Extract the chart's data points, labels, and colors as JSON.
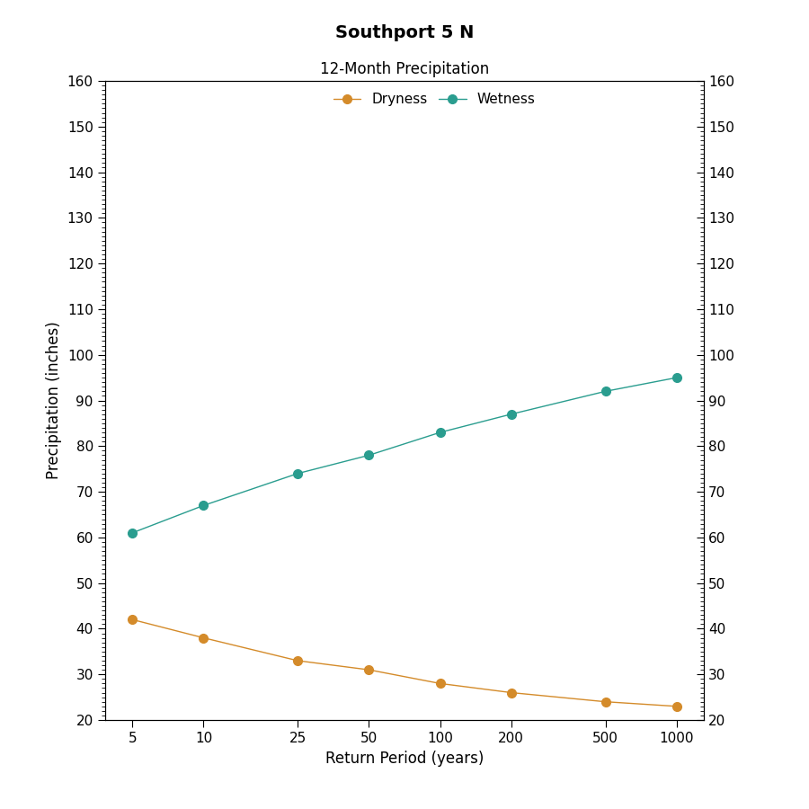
{
  "title": "Southport 5 N",
  "subtitle": "12-Month Precipitation",
  "xlabel": "Return Period (years)",
  "ylabel": "Precipitation (inches)",
  "x_values": [
    5,
    10,
    25,
    50,
    100,
    200,
    500,
    1000
  ],
  "wetness_values": [
    61,
    67,
    74,
    78,
    83,
    87,
    92,
    95
  ],
  "dryness_values": [
    42,
    38,
    33,
    31,
    28,
    26,
    24,
    23
  ],
  "wetness_color": "#2a9d8f",
  "dryness_color": "#d48b2a",
  "ylim": [
    20,
    160
  ],
  "yticks": [
    20,
    30,
    40,
    50,
    60,
    70,
    80,
    90,
    100,
    110,
    120,
    130,
    140,
    150,
    160
  ],
  "legend_labels": [
    "Dryness",
    "Wetness"
  ],
  "background_color": "#ffffff",
  "plot_bg_color": "#ffffff",
  "title_fontsize": 14,
  "subtitle_fontsize": 12,
  "label_fontsize": 12,
  "tick_fontsize": 11,
  "legend_fontsize": 11,
  "linewidth": 1.0,
  "markersize": 7
}
